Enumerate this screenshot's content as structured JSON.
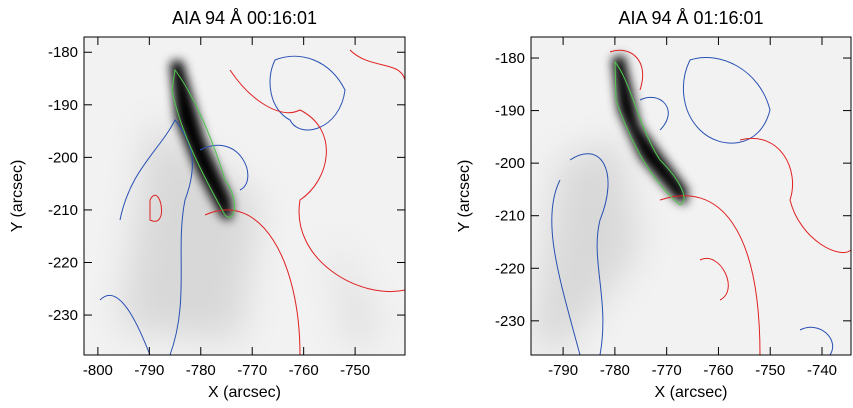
{
  "chart_data": [
    {
      "type": "image",
      "title": "AIA 94 Å 00:16:01",
      "xlabel": "X (arcsec)",
      "ylabel": "Y (arcsec)",
      "xlim": [
        -802.7,
        -740.3
      ],
      "ylim": [
        -237.6,
        -177.1
      ],
      "xticks": [
        -800,
        -790,
        -780,
        -770,
        -760,
        -750
      ],
      "yticks": [
        -230,
        -220,
        -210,
        -200,
        -190,
        -180
      ]
    },
    {
      "type": "image",
      "title": "AIA 94 Å 01:16:01",
      "xlabel": "X (arcsec)",
      "ylabel": "Y (arcsec)",
      "xlim": [
        -796.2,
        -734.4
      ],
      "ylim": [
        -236.5,
        -176.0
      ],
      "xticks": [
        -790,
        -780,
        -770,
        -760,
        -750,
        -740
      ],
      "yticks": [
        -230,
        -220,
        -210,
        -200,
        -190,
        -180
      ]
    }
  ]
}
